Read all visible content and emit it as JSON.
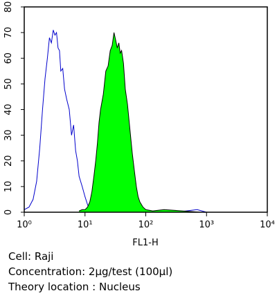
{
  "chart_data": {
    "type": "histogram-overlay",
    "xlabel": "FL1-H",
    "xlim": [
      1,
      10000
    ],
    "log_x": true,
    "xticks": [
      {
        "value": 1,
        "label": "10⁰"
      },
      {
        "value": 10,
        "label": "10¹"
      },
      {
        "value": 100,
        "label": "10²"
      },
      {
        "value": 1000,
        "label": "10³"
      },
      {
        "value": 10000,
        "label": "10⁴"
      }
    ],
    "ylim": [
      0,
      80
    ],
    "yticks": [
      0,
      10,
      20,
      30,
      40,
      50,
      60,
      70,
      80
    ],
    "series": [
      {
        "color": "#0000cc",
        "filled": false,
        "x": [
          1,
          1.2,
          1.4,
          1.6,
          1.8,
          2,
          2.2,
          2.4,
          2.6,
          2.8,
          3,
          3.2,
          3.4,
          3.6,
          3.8,
          4,
          4.3,
          4.6,
          5,
          5.5,
          6,
          6.5,
          7,
          7.5,
          8,
          9,
          10,
          11,
          12,
          14,
          16,
          20,
          30,
          50,
          80,
          100,
          150,
          300,
          700,
          1000
        ],
        "values": [
          1,
          2,
          5,
          12,
          25,
          40,
          52,
          60,
          68,
          66,
          71,
          69,
          70,
          64,
          63,
          55,
          56,
          48,
          44,
          40,
          30,
          34,
          24,
          20,
          14,
          10,
          6,
          3,
          1,
          0.5,
          1,
          0,
          0,
          0.5,
          0,
          0,
          0.5,
          0,
          1,
          0
        ]
      },
      {
        "color": "#00ff00",
        "filled": true,
        "x": [
          8,
          9,
          10,
          11,
          12,
          13,
          14,
          15,
          16,
          17,
          18,
          20,
          22,
          24,
          26,
          28,
          30,
          32,
          34,
          36,
          38,
          40,
          43,
          46,
          50,
          55,
          60,
          65,
          70,
          75,
          80,
          90,
          100,
          130,
          200,
          400,
          800
        ],
        "values": [
          0.5,
          1,
          1,
          2,
          4,
          8,
          14,
          20,
          27,
          35,
          40,
          46,
          55,
          57,
          63,
          65,
          70,
          67,
          64,
          66,
          62,
          63,
          58,
          48,
          42,
          32,
          23,
          16,
          10,
          6,
          4,
          2,
          1,
          0.5,
          1,
          0.5,
          0
        ]
      }
    ]
  },
  "notes": [
    "Cell: Raji",
    "Concentration: 2µg/test (100µl)",
    "Theory location : Nucleus"
  ]
}
